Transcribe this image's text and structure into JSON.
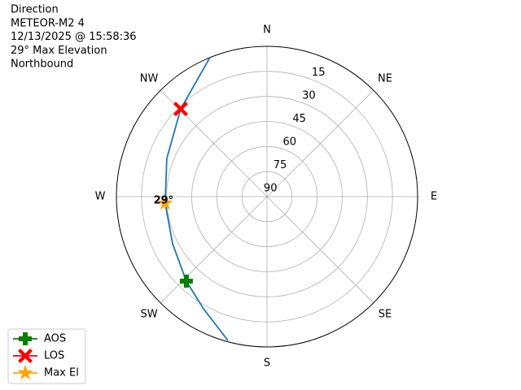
{
  "chart_data": {
    "type": "polar",
    "title_lines": [
      "Direction",
      "METEOR-M2 4",
      "12/13/2025 @ 15:58:36",
      "29° Max Elevation",
      "Northbound"
    ],
    "xticks": [
      {
        "value": 0,
        "label": "N"
      },
      {
        "value": 45,
        "label": "NE"
      },
      {
        "value": 90,
        "label": "E"
      },
      {
        "value": 135,
        "label": "SE"
      },
      {
        "value": 180,
        "label": "S"
      },
      {
        "value": 225,
        "label": "SW"
      },
      {
        "value": 270,
        "label": "W"
      },
      {
        "value": 315,
        "label": "NW"
      }
    ],
    "ylim": [
      90,
      0
    ],
    "yticks": [
      90,
      75,
      60,
      45,
      30,
      15
    ],
    "grid": true,
    "legend": "lower left",
    "series": [
      {
        "color": "#1f77b4",
        "x": [
          337.7,
          315.5,
          290.9,
          266.3,
          243.4,
          223.6,
          209.5,
          195.2
        ],
        "values": [
          0,
          16.4,
          25.9,
          29,
          26.9,
          20.1,
          12.9,
          0.8
        ]
      },
      {
        "name": "AOS",
        "color": "green",
        "marker": "plus",
        "x": [
          223.6
        ],
        "values": [
          20.1
        ]
      },
      {
        "name": "LOS",
        "color": "red",
        "marker": "x",
        "x": [
          315.5
        ],
        "values": [
          16.4
        ]
      },
      {
        "name": "Max El",
        "color": "orange",
        "marker": "star",
        "x": [
          266.3
        ],
        "values": [
          29
        ]
      }
    ],
    "annotations": [
      {
        "text": "29°",
        "x": 266.3,
        "y": 29
      }
    ]
  }
}
